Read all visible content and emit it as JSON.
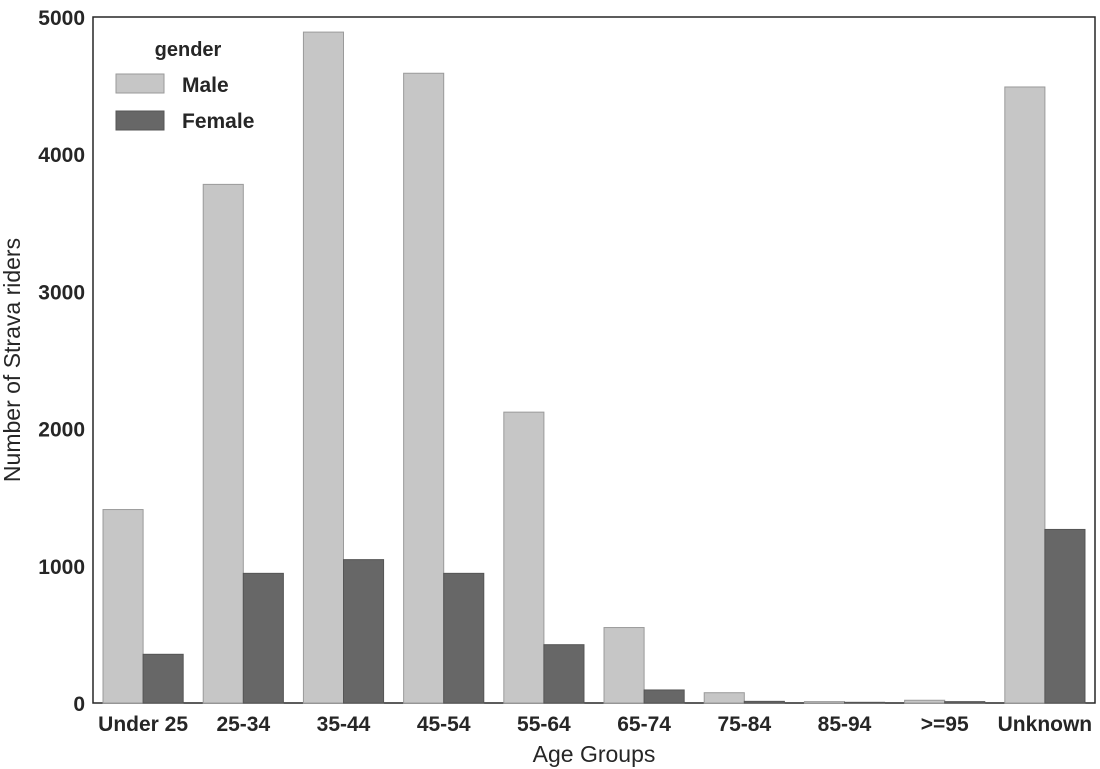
{
  "chart_data": {
    "type": "bar",
    "xlabel": "Age Groups",
    "ylabel": "Number of Strava riders",
    "ylim": [
      0,
      5000
    ],
    "yticks": [
      0,
      1000,
      2000,
      3000,
      4000,
      5000
    ],
    "categories": [
      "Under 25",
      "25-34",
      "35-44",
      "45-54",
      "55-64",
      "65-74",
      "75-84",
      "85-94",
      ">=95",
      "Unknown"
    ],
    "legend": {
      "title": "gender",
      "position": "top-left"
    },
    "grid": false,
    "series": [
      {
        "name": "Male",
        "color": "#c6c6c6",
        "values": [
          1410,
          3780,
          4890,
          4590,
          2120,
          550,
          75,
          10,
          20,
          4490
        ]
      },
      {
        "name": "Female",
        "color": "#676767",
        "values": [
          355,
          945,
          1045,
          945,
          425,
          95,
          12,
          5,
          10,
          1265
        ]
      }
    ]
  }
}
